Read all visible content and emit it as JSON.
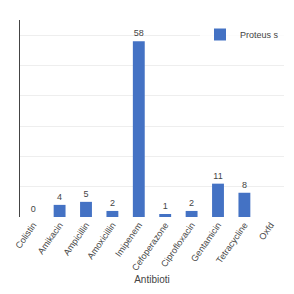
{
  "chart_data": {
    "type": "bar",
    "xlabel": "Antibioti",
    "categories": [
      "Colistin",
      "Amikacin",
      "Ampicillin",
      "Amoxicillin",
      "Imipenem",
      "Cefoperazone",
      "Ciprofloxacin",
      "Gentamicin",
      "Tetracycline",
      "Oxfd"
    ],
    "series": [
      {
        "name": "Proteus s",
        "color": "#4472C4",
        "values": [
          0,
          4,
          5,
          2,
          58,
          1,
          2,
          11,
          8,
          0
        ],
        "value_labels": [
          "0",
          "4",
          "5",
          "2",
          "58",
          "1",
          "2",
          "11",
          "8",
          null
        ]
      }
    ],
    "ylim": [
      0,
      65
    ],
    "yticks": [
      0,
      10,
      20,
      30,
      40,
      50,
      60
    ],
    "grid": true,
    "legend": "upper right",
    "data_labels": true,
    "tick_labels": "x"
  }
}
